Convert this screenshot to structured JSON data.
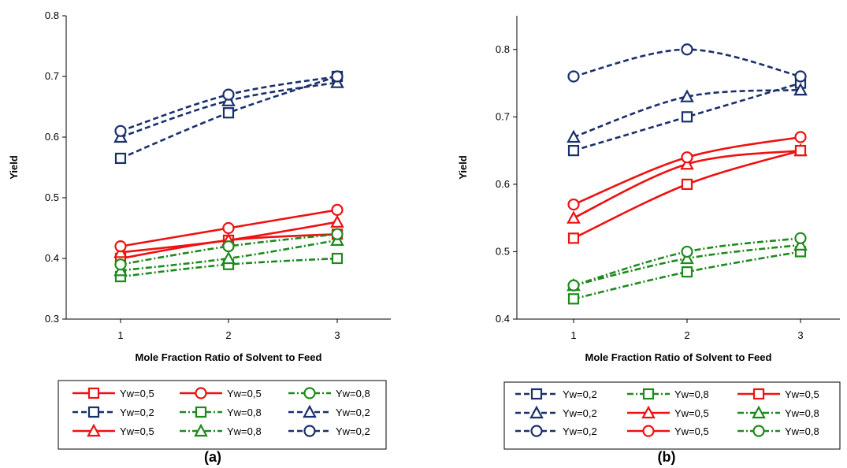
{
  "colors": {
    "red": "#ee1111",
    "navy": "#1a2f6b",
    "green": "#1e8a1e"
  },
  "chart_data": [
    {
      "type": "line",
      "panel_label": "(a)",
      "xlabel": "Mole Fraction Ratio of Solvent to Feed",
      "ylabel": "Yield",
      "x": [
        1,
        2,
        3
      ],
      "xticks": [
        "1",
        "2",
        "3"
      ],
      "ylim": [
        0.3,
        0.8
      ],
      "yticks": [
        "0.3",
        "0.4",
        "0.5",
        "0.6",
        "0.7",
        "0.8"
      ],
      "grid": false,
      "legend_position": "bottom",
      "series": [
        {
          "name": "Yw=0,5",
          "color": "red",
          "dash": "solid",
          "marker": "square",
          "values": [
            0.4,
            0.43,
            0.44
          ]
        },
        {
          "name": "Yw=0,2",
          "color": "navy",
          "dash": "dash",
          "marker": "square",
          "values": [
            0.565,
            0.64,
            0.7
          ]
        },
        {
          "name": "Yw=0,5",
          "color": "red",
          "dash": "solid",
          "marker": "triangle",
          "values": [
            0.41,
            0.43,
            0.46
          ]
        },
        {
          "name": "Yw=0,5",
          "color": "red",
          "dash": "solid",
          "marker": "circle",
          "values": [
            0.42,
            0.45,
            0.48
          ]
        },
        {
          "name": "Yw=0,8",
          "color": "green",
          "dash": "dashdot",
          "marker": "square",
          "values": [
            0.37,
            0.39,
            0.4
          ]
        },
        {
          "name": "Yw=0,8",
          "color": "green",
          "dash": "dashdot",
          "marker": "triangle",
          "values": [
            0.38,
            0.4,
            0.43
          ]
        },
        {
          "name": "Yw=0,8",
          "color": "green",
          "dash": "dashdot",
          "marker": "circle",
          "values": [
            0.39,
            0.42,
            0.44
          ]
        },
        {
          "name": "Yw=0,2",
          "color": "navy",
          "dash": "dash",
          "marker": "triangle",
          "values": [
            0.6,
            0.66,
            0.69
          ]
        },
        {
          "name": "Yw=0,2",
          "color": "navy",
          "dash": "dash",
          "marker": "circle",
          "values": [
            0.61,
            0.67,
            0.7
          ]
        }
      ]
    },
    {
      "type": "line",
      "panel_label": "(b)",
      "xlabel": "Mole Fraction Ratio of Solvent to Feed",
      "ylabel": "Yield",
      "x": [
        1,
        2,
        3
      ],
      "xticks": [
        "1",
        "2",
        "3"
      ],
      "ylim": [
        0.4,
        0.85
      ],
      "yticks": [
        "0.4",
        "0.5",
        "0.6",
        "0.7",
        "0.8"
      ],
      "grid": false,
      "legend_position": "bottom",
      "series": [
        {
          "name": "Yw=0,2",
          "color": "navy",
          "dash": "dash",
          "marker": "square",
          "values": [
            0.65,
            0.7,
            0.75
          ]
        },
        {
          "name": "Yw=0,2",
          "color": "navy",
          "dash": "dash",
          "marker": "triangle",
          "values": [
            0.67,
            0.73,
            0.74
          ]
        },
        {
          "name": "Yw=0,2",
          "color": "navy",
          "dash": "dash",
          "marker": "circle",
          "values": [
            0.76,
            0.8,
            0.76
          ]
        },
        {
          "name": "Yw=0,8",
          "color": "green",
          "dash": "dashdot",
          "marker": "square",
          "values": [
            0.43,
            0.47,
            0.5
          ]
        },
        {
          "name": "Yw=0,5",
          "color": "red",
          "dash": "solid",
          "marker": "triangle",
          "values": [
            0.55,
            0.63,
            0.65
          ]
        },
        {
          "name": "Yw=0,5",
          "color": "red",
          "dash": "solid",
          "marker": "circle",
          "values": [
            0.57,
            0.64,
            0.67
          ]
        },
        {
          "name": "Yw=0,5",
          "color": "red",
          "dash": "solid",
          "marker": "square",
          "values": [
            0.52,
            0.6,
            0.65
          ]
        },
        {
          "name": "Yw=0,8",
          "color": "green",
          "dash": "dashdot",
          "marker": "triangle",
          "values": [
            0.45,
            0.49,
            0.51
          ]
        },
        {
          "name": "Yw=0,8",
          "color": "green",
          "dash": "dashdot",
          "marker": "circle",
          "values": [
            0.45,
            0.5,
            0.52
          ]
        }
      ]
    }
  ]
}
